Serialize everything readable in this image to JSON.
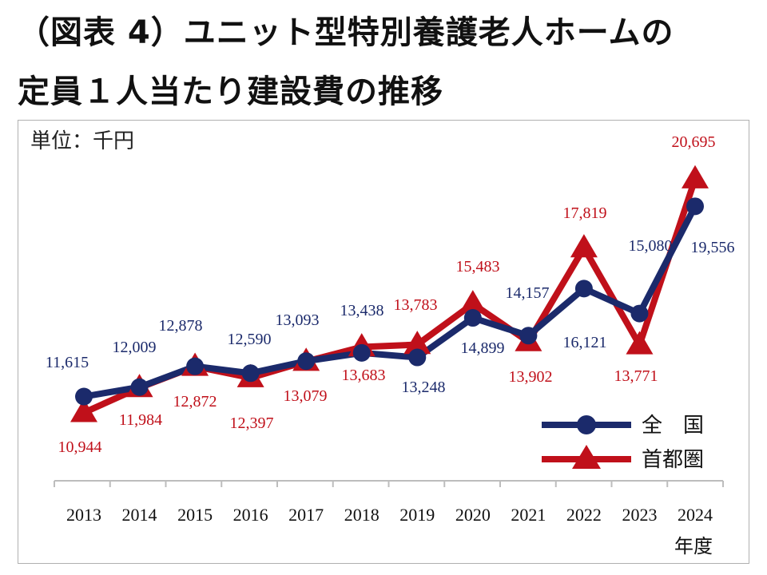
{
  "title_line1": "（図表 4）ユニット型特別養護老人ホームの",
  "title_line2": "定員１人当たり建設費の推移",
  "unit_label": "単位：千円",
  "chart_data": {
    "type": "line",
    "x": [
      "2013",
      "2014",
      "2015",
      "2016",
      "2017",
      "2018",
      "2019",
      "2020",
      "2021",
      "2022",
      "2023",
      "2024"
    ],
    "xlabel": "年度",
    "ylabel": "",
    "series": [
      {
        "name": "全　国",
        "color": "#1b2a6b",
        "marker": "circle",
        "values": [
          11615,
          12009,
          12878,
          12590,
          13093,
          13438,
          13248,
          14899,
          14157,
          16121,
          15080,
          19556
        ],
        "labels": [
          "11,615",
          "12,009",
          "12,878",
          "12,590",
          "13,093",
          "13,438",
          "13,248",
          "14,899",
          "14,157",
          "16,121",
          "15,080",
          "19,556"
        ]
      },
      {
        "name": "首都圏",
        "color": "#c0101a",
        "marker": "triangle",
        "values": [
          10944,
          11984,
          12872,
          12397,
          13079,
          13683,
          13783,
          15483,
          13902,
          17819,
          13771,
          20695
        ],
        "labels": [
          "10,944",
          "11,984",
          "12,872",
          "12,397",
          "13,079",
          "13,683",
          "13,783",
          "15,483",
          "13,902",
          "17,819",
          "13,771",
          "20,695"
        ]
      }
    ],
    "legend_position": "lower-right",
    "grid": false
  }
}
